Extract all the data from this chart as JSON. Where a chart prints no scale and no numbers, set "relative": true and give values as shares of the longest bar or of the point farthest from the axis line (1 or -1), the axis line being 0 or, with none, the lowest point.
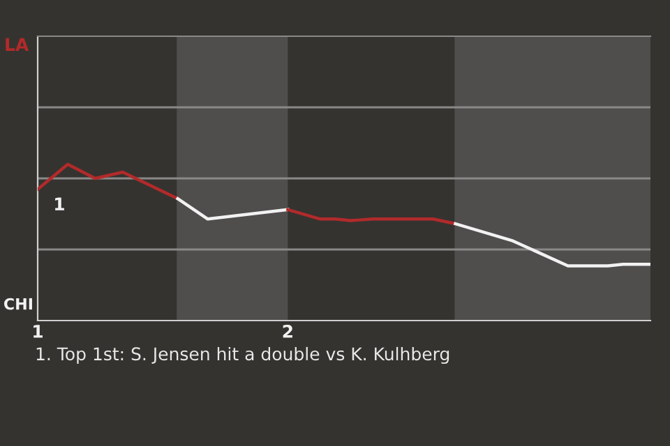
{
  "chart_data": {
    "type": "line",
    "relative": true,
    "series": [
      {
        "color": "#b22a2a",
        "x": [
          1.0,
          1.12,
          1.23,
          1.34,
          1.56
        ],
        "values": [
          0.84,
          1,
          0.91,
          0.95,
          0.78
        ]
      },
      {
        "color": "#f2f2f2",
        "x": [
          1.56,
          1.68,
          2.0
        ],
        "values": [
          0.78,
          0.65,
          0.71
        ]
      },
      {
        "color": "#b22a2a",
        "x": [
          2.0,
          2.13,
          2.19,
          2.25,
          2.34,
          2.58,
          2.67
        ],
        "values": [
          0.71,
          0.65,
          0.65,
          0.64,
          0.65,
          0.65,
          0.62
        ]
      },
      {
        "color": "#f2f2f2",
        "x": [
          2.67,
          2.9,
          3.12,
          3.28,
          3.34,
          3.45
        ],
        "values": [
          0.62,
          0.51,
          0.35,
          0.35,
          0.36,
          0.36
        ]
      }
    ],
    "xlim": [
      1,
      3.45
    ],
    "xticks": [
      {
        "value": 1,
        "label": "1"
      },
      {
        "value": 2,
        "label": "2"
      }
    ],
    "ref_lines": [
      {
        "axis": "y",
        "value": 0.455,
        "color": "#8a8987"
      },
      {
        "axis": "y",
        "value": 0.91,
        "color": "#8a8987"
      },
      {
        "axis": "y",
        "value": 1.365,
        "color": "#8a8987"
      }
    ],
    "marker": "none",
    "line_style": "solid",
    "bands": [
      {
        "axis": "x",
        "from": 1.556,
        "to": 2.0,
        "color": "#4f4e4c"
      },
      {
        "axis": "x",
        "from": 2.667,
        "to": 3.45,
        "color": "#4f4e4c"
      }
    ],
    "annotations": [
      "LA",
      "CHI",
      {
        "text": "1",
        "x": 1.0,
        "y": 0.84
      },
      "1. Top 1st: S. Jensen hit a double vs K. Kulhberg"
    ]
  }
}
